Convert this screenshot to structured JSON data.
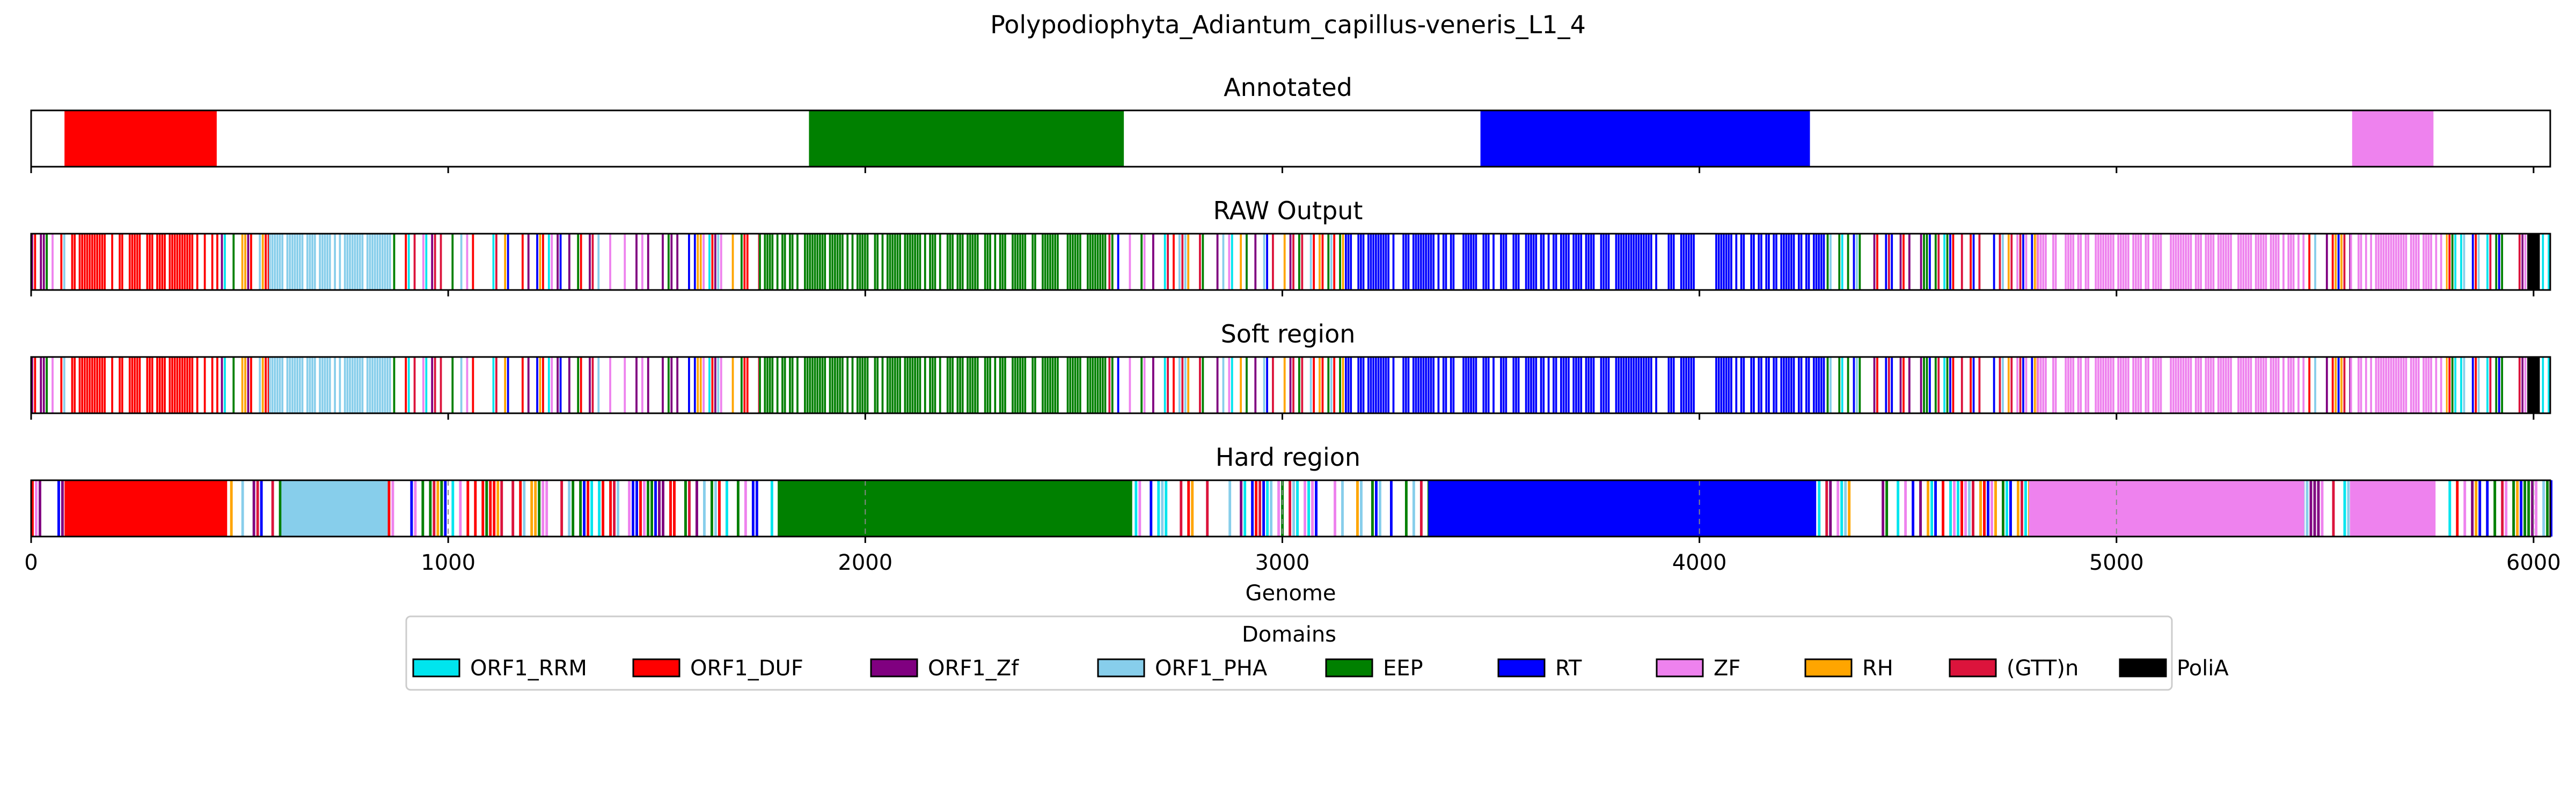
{
  "figure_title": "Polypodiophyta_Adiantum_capillus-veneris_L1_4",
  "colors": {
    "ORF1_RRM": "#00e5ee",
    "ORF1_DUF": "#ff0000",
    "ORF1_Zf": "#800080",
    "ORF1_PHA": "#87ceeb",
    "EEP": "#008000",
    "RT": "#0000ff",
    "ZF": "#ee82ee",
    "RH": "#ffa500",
    "(GTT)n": "#dc143c",
    "PoliA": "#000000"
  },
  "chart_data": {
    "type": "bar",
    "xlabel": "Genome",
    "xlim": [
      0,
      6040
    ],
    "xticks": [
      "0",
      "1000",
      "2000",
      "3000",
      "4000",
      "5000",
      "6000"
    ],
    "legend": {
      "title": "Domains",
      "placement": "bottom-center",
      "entries": [
        "ORF1_RRM",
        "ORF1_DUF",
        "ORF1_Zf",
        "ORF1_PHA",
        "EEP",
        "RT",
        "ZF",
        "RH",
        "(GTT)n",
        "PoliA"
      ]
    },
    "panels": [
      {
        "title": "Annotated",
        "segments": [
          {
            "domain": "ORF1_DUF",
            "start": 80,
            "end": 445
          },
          {
            "domain": "EEP",
            "start": 1865,
            "end": 2620
          },
          {
            "domain": "RT",
            "start": 3475,
            "end": 4265
          },
          {
            "domain": "ZF",
            "start": 5565,
            "end": 5760
          }
        ]
      },
      {
        "title": "RAW Output",
        "segments": [
          {
            "domain": "ORF1_DUF",
            "start": 90,
            "end": 445,
            "texture": "mixed"
          },
          {
            "domain": "ORF1_PHA",
            "start": 570,
            "end": 860,
            "texture": "mixed"
          },
          {
            "domain": "EEP",
            "start": 1745,
            "end": 2580,
            "texture": "mixed"
          },
          {
            "domain": "RT",
            "start": 3150,
            "end": 4300,
            "texture": "mixed"
          },
          {
            "domain": "ZF",
            "start": 4810,
            "end": 5450,
            "texture": "mixed"
          },
          {
            "domain": "ZF",
            "start": 5560,
            "end": 5790,
            "texture": "mixed"
          },
          {
            "domain": "PoliA",
            "start": 5985,
            "end": 6015,
            "texture": "solid"
          }
        ]
      },
      {
        "title": "Soft region",
        "segments": [
          {
            "domain": "ORF1_DUF",
            "start": 90,
            "end": 445,
            "texture": "mixed"
          },
          {
            "domain": "ORF1_PHA",
            "start": 570,
            "end": 860,
            "texture": "mixed"
          },
          {
            "domain": "EEP",
            "start": 1745,
            "end": 2580,
            "texture": "mixed"
          },
          {
            "domain": "RT",
            "start": 3150,
            "end": 4300,
            "texture": "mixed"
          },
          {
            "domain": "ZF",
            "start": 4810,
            "end": 5450,
            "texture": "mixed"
          },
          {
            "domain": "ZF",
            "start": 5560,
            "end": 5790,
            "texture": "mixed"
          },
          {
            "domain": "PoliA",
            "start": 5985,
            "end": 6015,
            "texture": "solid"
          }
        ]
      },
      {
        "title": "Hard region",
        "segments": [
          {
            "domain": "ORF1_DUF",
            "start": 80,
            "end": 470,
            "texture": "solid"
          },
          {
            "domain": "ORF1_PHA",
            "start": 600,
            "end": 855,
            "texture": "solid"
          },
          {
            "domain": "EEP",
            "start": 1790,
            "end": 2640,
            "texture": "solid"
          },
          {
            "domain": "RT",
            "start": 3350,
            "end": 4280,
            "texture": "solid"
          },
          {
            "domain": "ZF",
            "start": 4790,
            "end": 5450,
            "texture": "solid"
          },
          {
            "domain": "ZF",
            "start": 5560,
            "end": 5765,
            "texture": "solid"
          }
        ]
      }
    ]
  }
}
